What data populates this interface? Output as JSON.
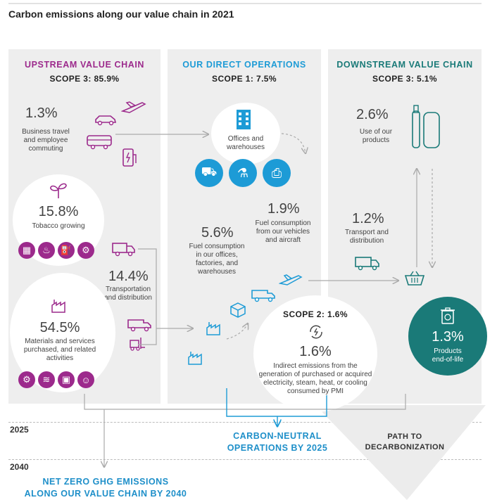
{
  "title": "Carbon emissions along our value chain in 2021",
  "colors": {
    "upstream": "#9c2a8c",
    "direct": "#1d9bd6",
    "downstream": "#1a7a78",
    "panel": "#eeeeee"
  },
  "upstream": {
    "heading": "UPSTREAM VALUE CHAIN",
    "scope": "SCOPE 3: 85.9%",
    "business": {
      "pct": "1.3%",
      "label": "Business travel\nand employee\ncommuting"
    },
    "tobacco": {
      "pct": "15.8%",
      "label": "Tobacco growing"
    },
    "transport": {
      "pct": "14.4%",
      "label": "Transportation\nand distribution"
    },
    "materials": {
      "pct": "54.5%",
      "label": "Materials and services\npurchased, and related\nactivities"
    }
  },
  "direct": {
    "heading": "OUR DIRECT OPERATIONS",
    "scope": "SCOPE 1: 7.5%",
    "offices": {
      "label": "Offices and\nwarehouses"
    },
    "vehicles": {
      "pct": "1.9%",
      "label": "Fuel consumption\nfrom our vehicles\nand aircraft"
    },
    "fuel": {
      "pct": "5.6%",
      "label": "Fuel consumption\nin our offices,\nfactories, and\nwarehouses"
    },
    "scope2": {
      "heading": "SCOPE 2: 1.6%",
      "pct": "1.6%",
      "label": "Indirect emissions from the\ngeneration of purchased or acquired\nelectricity, steam, heat, or cooling\nconsumed by PMI"
    }
  },
  "downstream": {
    "heading": "DOWNSTREAM VALUE CHAIN",
    "scope": "SCOPE 3: 5.1%",
    "use": {
      "pct": "2.6%",
      "label": "Use of our\nproducts"
    },
    "transport": {
      "pct": "1.2%",
      "label": "Transport and\ndistribution"
    },
    "eol": {
      "pct": "1.3%",
      "label": "Products\nend-of-life"
    }
  },
  "milestones": {
    "y2025": "2025",
    "y2040": "2040",
    "carbon_neutral": "CARBON-NEUTRAL\nOPERATIONS BY 2025",
    "path": "PATH TO\nDECARBONIZATION",
    "net_zero": "NET ZERO GHG EMISSIONS\nALONG OUR VALUE CHAIN BY 2040"
  },
  "icons": {
    "car": "car-icon",
    "plane": "plane-icon",
    "bus": "bus-icon",
    "charger": "ev-charger-icon",
    "plant": "plant-icon",
    "truck": "truck-icon",
    "van": "van-icon",
    "forklift": "forklift-icon",
    "factory": "factory-icon",
    "building": "office-building-icon",
    "box": "box-icon",
    "basket": "basket-icon",
    "recycle": "recycle-bin-icon",
    "device": "heated-tobacco-device-icon"
  }
}
